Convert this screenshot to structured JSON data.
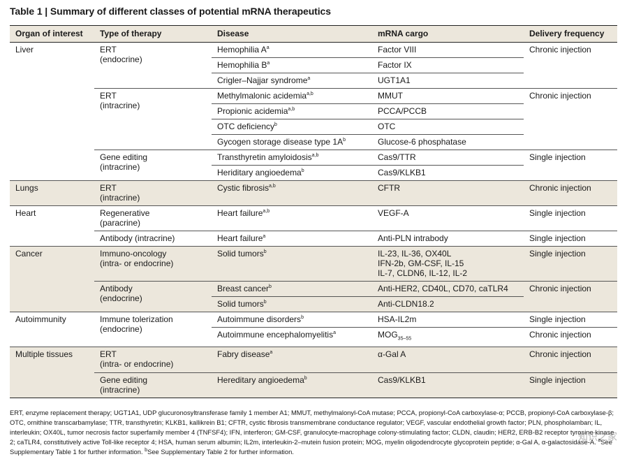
{
  "title": "Table 1 | Summary of different classes of potential mRNA therapeutics",
  "headers": [
    "Organ of interest",
    "Type of therapy",
    "Disease",
    "mRNA cargo",
    "Delivery frequency"
  ],
  "rows": {
    "liver_organ": "Liver",
    "liver_ert_endo": [
      "ERT",
      "(endocrine)"
    ],
    "hemo_a": "Hemophilia A",
    "hemo_a_sup": "a",
    "factor8": "Factor VIII",
    "hemo_b": "Hemophilia B",
    "hemo_b_sup": "a",
    "factor9": "Factor IX",
    "crigler": "Crigler–Najjar syndrome",
    "crigler_sup": "a",
    "ugt": "UGT1A1",
    "chronic1": "Chronic injection",
    "liver_ert_intra": [
      "ERT",
      "(intracrine)"
    ],
    "mma": "Methylmalonic acidemia",
    "mma_sup": "a,b",
    "mmut": "MMUT",
    "pa": "Propionic acidemia",
    "pa_sup": "a,b",
    "pcca": "PCCA/PCCB",
    "otc": "OTC deficiency",
    "otc_sup": "b",
    "otc_cargo": "OTC",
    "gsd": "Gycogen storage disease type 1A",
    "gsd_sup": "b",
    "g6p": "Glucose-6 phosphatase",
    "chronic2": "Chronic injection",
    "liver_gene": [
      "Gene editing",
      "(intracrine)"
    ],
    "ttr": "Transthyretin amyloidosis",
    "ttr_sup": "a,b",
    "cas_ttr": "Cas9/TTR",
    "hae": "Heriditary angioedema",
    "hae_sup": "b",
    "cas_klkb1": "Cas9/KLKB1",
    "single1": "Single injection",
    "lungs_organ": "Lungs",
    "lungs_ert": [
      "ERT",
      "(intracrine)"
    ],
    "cf": "Cystic fibrosis",
    "cf_sup": "a,b",
    "cftr": "CFTR",
    "chronic3": "Chronic injection",
    "heart_organ": "Heart",
    "heart_regen": [
      "Regenerative",
      "(paracrine)"
    ],
    "hf1": "Heart failure",
    "hf1_sup": "a,b",
    "vegf": "VEGF-A",
    "single2": "Single injection",
    "heart_ab": "Antibody (intracrine)",
    "hf2": "Heart failure",
    "hf2_sup": "a",
    "antipln": "Anti-PLN intrabody",
    "single3": "Single injection",
    "cancer_organ": "Cancer",
    "cancer_immuno": [
      "Immuno-oncology",
      "(intra- or endocrine)"
    ],
    "solid1": "Solid tumors",
    "solid1_sup": "b",
    "il_list": [
      "IL-23, IL-36, OX40L",
      "IFN-2b, GM-CSF, IL-15",
      "IL-7, CLDN6, IL-12, IL-2"
    ],
    "single4": "Single injection",
    "cancer_ab": [
      "Antibody",
      "(endocrine)"
    ],
    "breast": "Breast cancer",
    "breast_sup": "b",
    "antiher2": "Anti-HER2, CD40L, CD70, caTLR4",
    "solid2": "Solid tumors",
    "solid2_sup": "b",
    "anticldn": "Anti-CLDN18.2",
    "chronic4": "Chronic injection",
    "auto_organ": "Autoimmunity",
    "auto_tol": [
      "Immune tolerization",
      "(endocrine)"
    ],
    "auto_dis": "Autoimmune disorders",
    "auto_dis_sup": "b",
    "hsa": "HSA-IL2m",
    "single5": "Single injection",
    "auto_enc": "Autoimmune encephalomyelitis",
    "auto_enc_sup": "a",
    "mog": "MOG",
    "mog_sub": "35–55",
    "chronic5": "Chronic injection",
    "multi_organ": "Multiple tissues",
    "multi_ert": [
      "ERT",
      "(intra- or endocrine)"
    ],
    "fabry": "Fabry disease",
    "fabry_sup": "a",
    "agal": "α-Gal A",
    "chronic6": "Chronic injection",
    "multi_gene": [
      "Gene editing",
      "(intracrine)"
    ],
    "hae2": "Hereditary angioedema",
    "hae2_sup": "b",
    "cas_klkb1_2": "Cas9/KLKB1",
    "single6": "Single injection"
  },
  "footnote": "ERT, enzyme replacement therapy; UGT1A1, UDP glucuronosyltransferase family 1 member A1; MMUT, methylmalonyl-CoA mutase; PCCA, propionyl-CoA carboxylase-α; PCCB, propionyl-CoA carboxylase-β; OTC, ornithine transcarbamylase; TTR, transthyretin; KLKB1, kallikrein B1; CFTR, cystic fibrosis transmembrane conductance regulator; VEGF, vascular endothelial growth factor; PLN, phospholamban; IL, interleukin; OX40L, tumor necrosis factor superfamily member 4 (TNFSF4); IFN, interferon; GM-CSF, granulocyte-macrophage colony-stimulating factor; CLDN, claudin; HER2, ERB-B2 receptor tyrosine kinase 2; caTLR4, constitutively active Toll-like receptor 4; HSA, human serum albumin; IL2m, interleukin-2–mutein fusion protein; MOG, myelin oligodendrocyte glycoprotein peptide; α-Gal A, α-galactosidase-A.",
  "footnote_a": "See Supplementary Table 1 for further information.",
  "footnote_b": "See Supplementary Table 2 for further information.",
  "footnote_a_mark": "a",
  "footnote_b_mark": "b",
  "watermark": "知识之家"
}
